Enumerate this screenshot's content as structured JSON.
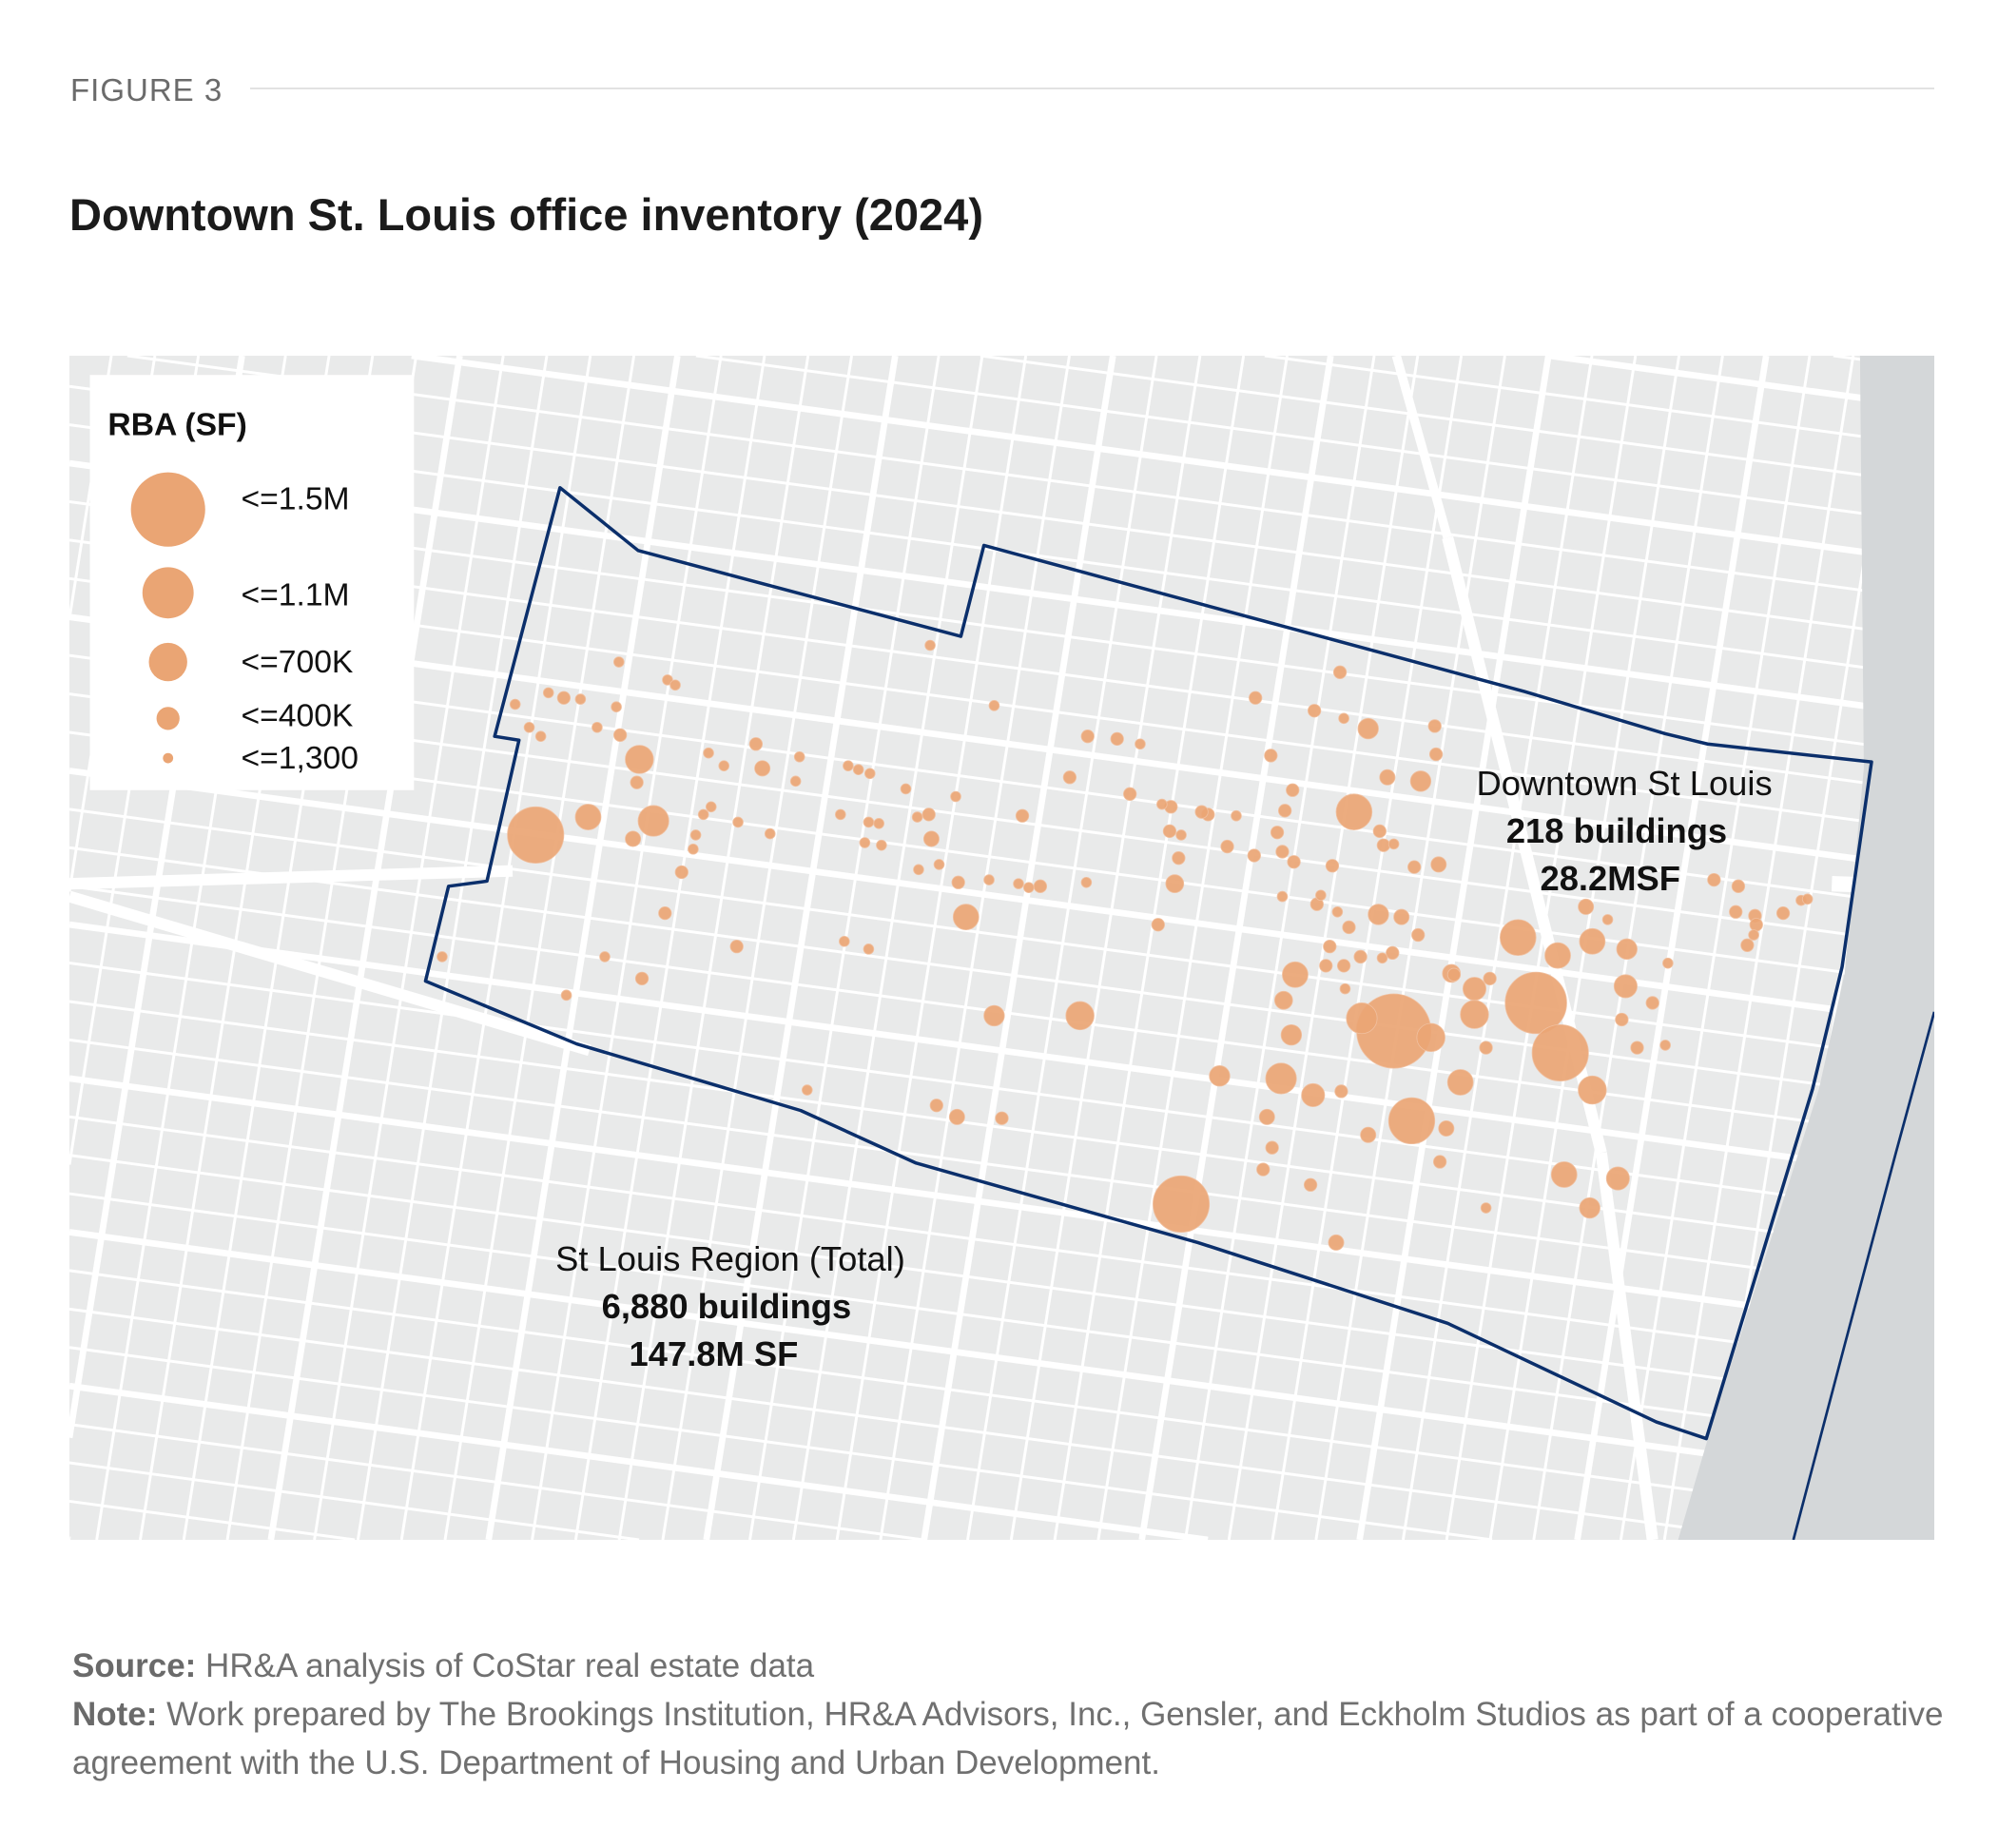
{
  "figure_label": "FIGURE 3",
  "title": "Downtown St. Louis office inventory (2024)",
  "legend": {
    "title": "RBA (SF)",
    "items": [
      {
        "label": "<=1.5M"
      },
      {
        "label": "<=1.1M"
      },
      {
        "label": "<=700K"
      },
      {
        "label": "<=400K"
      },
      {
        "label": "<=1,300"
      }
    ]
  },
  "annotations": {
    "downtown": {
      "name": "Downtown St Louis",
      "buildings": "218 buildings",
      "area": "28.2MSF"
    },
    "region": {
      "name": "St Louis Region (Total)",
      "buildings": "6,880 buildings",
      "area": "147.8M SF"
    }
  },
  "colors": {
    "dot": "#eaa574",
    "boundary": "#0b2f6b",
    "land": "#e9eaea",
    "road": "#ffffff",
    "water": "#d4d7d9"
  },
  "footer": {
    "source_label": "Source:",
    "source_text": "HR&A analysis of CoStar real estate data",
    "note_label": "Note:",
    "note_text": "Work prepared by The Brookings Institution, HR&A Advisors, Inc., Gensler, and Eckholm Studios as part of a cooperative agreement with the U.S. Department of Housing and Urban Development."
  }
}
